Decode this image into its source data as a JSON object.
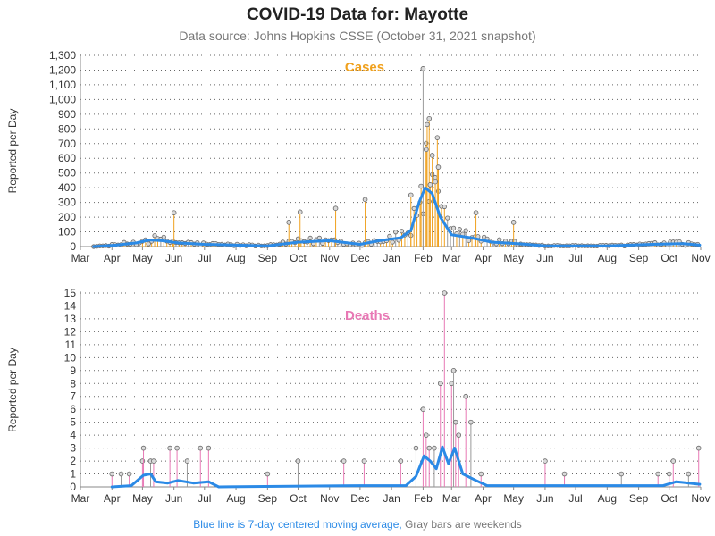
{
  "header": {
    "title": "COVID-19 Data for: Mayotte",
    "subtitle": "Data source: Johns Hopkins CSSE (October 31, 2021 snapshot)"
  },
  "footnote": {
    "blue_part": "Blue line is 7-day centered moving average,",
    "gray_part": " Gray bars are weekends"
  },
  "colors": {
    "cases": "#f0a11e",
    "deaths": "#e879b5",
    "moving_average": "#2b8ae6",
    "weekend": "#9a9a9a",
    "marker_fill": "#d9d9d9",
    "marker_stroke": "#666666",
    "grid": "#666666"
  },
  "chart_data": [
    {
      "type": "bar",
      "panel": "cases",
      "label": "Cases",
      "ylabel": "Reported per Day",
      "ylim": [
        0,
        1300
      ],
      "yticks": [
        0,
        100,
        200,
        300,
        400,
        500,
        600,
        700,
        800,
        900,
        1000,
        1100,
        1200,
        1300
      ],
      "ytick_labels": [
        "0",
        "100",
        "200",
        "300",
        "400",
        "500",
        "600",
        "700",
        "800",
        "900",
        "1,000",
        "1,100",
        "1,200",
        "1,300"
      ],
      "xticks": [
        "Mar",
        "Apr",
        "May",
        "Jun",
        "Jul",
        "Aug",
        "Sep",
        "Oct",
        "Nov",
        "Dec",
        "Jan",
        "Feb",
        "Mar",
        "Apr",
        "May",
        "Jun",
        "Jul",
        "Aug",
        "Sep",
        "Oct",
        "Nov"
      ],
      "x_range": [
        "2020-03-01",
        "2021-11-01"
      ],
      "grid": "horizontal dotted",
      "peak_spikes": [
        {
          "date": "2021-02-01",
          "value": 1210
        },
        {
          "date": "2021-02-07",
          "value": 870
        },
        {
          "date": "2021-02-05",
          "value": 830
        },
        {
          "date": "2021-02-15",
          "value": 740
        },
        {
          "date": "2021-02-04",
          "value": 660
        },
        {
          "date": "2021-02-10",
          "value": 620
        },
        {
          "date": "2021-02-16",
          "value": 540
        },
        {
          "date": "2021-02-13",
          "value": 440
        },
        {
          "date": "2021-02-08",
          "value": 420
        },
        {
          "date": "2021-01-30",
          "value": 410
        },
        {
          "date": "2021-01-20",
          "value": 350
        },
        {
          "date": "2020-12-06",
          "value": 320
        },
        {
          "date": "2020-11-07",
          "value": 260
        },
        {
          "date": "2020-06-01",
          "value": 230
        },
        {
          "date": "2020-10-03",
          "value": 235
        },
        {
          "date": "2020-09-22",
          "value": 165
        },
        {
          "date": "2021-03-25",
          "value": 230
        },
        {
          "date": "2021-05-01",
          "value": 165
        }
      ],
      "moving_average": [
        {
          "date": "2020-03-14",
          "value": 0
        },
        {
          "date": "2020-04-05",
          "value": 10
        },
        {
          "date": "2020-04-25",
          "value": 25
        },
        {
          "date": "2020-05-08",
          "value": 45
        },
        {
          "date": "2020-05-20",
          "value": 40
        },
        {
          "date": "2020-06-05",
          "value": 25
        },
        {
          "date": "2020-07-01",
          "value": 15
        },
        {
          "date": "2020-08-01",
          "value": 10
        },
        {
          "date": "2020-09-01",
          "value": 5
        },
        {
          "date": "2020-10-01",
          "value": 30
        },
        {
          "date": "2020-11-01",
          "value": 40
        },
        {
          "date": "2020-12-01",
          "value": 15
        },
        {
          "date": "2020-12-20",
          "value": 40
        },
        {
          "date": "2021-01-10",
          "value": 60
        },
        {
          "date": "2021-01-20",
          "value": 110
        },
        {
          "date": "2021-01-28",
          "value": 300
        },
        {
          "date": "2021-02-03",
          "value": 400
        },
        {
          "date": "2021-02-10",
          "value": 360
        },
        {
          "date": "2021-02-18",
          "value": 200
        },
        {
          "date": "2021-03-01",
          "value": 80
        },
        {
          "date": "2021-03-20",
          "value": 60
        },
        {
          "date": "2021-04-10",
          "value": 30
        },
        {
          "date": "2021-05-05",
          "value": 20
        },
        {
          "date": "2021-06-01",
          "value": 5
        },
        {
          "date": "2021-08-01",
          "value": 5
        },
        {
          "date": "2021-09-15",
          "value": 15
        },
        {
          "date": "2021-10-15",
          "value": 20
        },
        {
          "date": "2021-10-31",
          "value": 10
        }
      ]
    },
    {
      "type": "bar",
      "panel": "deaths",
      "label": "Deaths",
      "ylabel": "Reported per Day",
      "ylim": [
        0,
        15
      ],
      "yticks": [
        0,
        1,
        2,
        3,
        4,
        5,
        6,
        7,
        8,
        9,
        10,
        11,
        12,
        13,
        14,
        15
      ],
      "ytick_labels": [
        "0",
        "1",
        "2",
        "3",
        "4",
        "5",
        "6",
        "7",
        "8",
        "9",
        "10",
        "11",
        "12",
        "13",
        "14",
        "15"
      ],
      "xticks": [
        "Mar",
        "Apr",
        "May",
        "Jun",
        "Jul",
        "Aug",
        "Sep",
        "Oct",
        "Nov",
        "Dec",
        "Jan",
        "Feb",
        "Mar",
        "Apr",
        "May",
        "Jun",
        "Jul",
        "Aug",
        "Sep",
        "Oct",
        "Nov"
      ],
      "x_range": [
        "2020-03-01",
        "2021-11-01"
      ],
      "grid": "horizontal dotted",
      "spikes": [
        {
          "date": "2020-04-01",
          "value": 1
        },
        {
          "date": "2020-04-10",
          "value": 1
        },
        {
          "date": "2020-04-18",
          "value": 1
        },
        {
          "date": "2020-05-01",
          "value": 2
        },
        {
          "date": "2020-05-02",
          "value": 3
        },
        {
          "date": "2020-05-09",
          "value": 2
        },
        {
          "date": "2020-05-12",
          "value": 2
        },
        {
          "date": "2020-05-28",
          "value": 3
        },
        {
          "date": "2020-06-04",
          "value": 3
        },
        {
          "date": "2020-06-14",
          "value": 2
        },
        {
          "date": "2020-06-27",
          "value": 3
        },
        {
          "date": "2020-07-05",
          "value": 3
        },
        {
          "date": "2020-09-01",
          "value": 1
        },
        {
          "date": "2020-10-01",
          "value": 2
        },
        {
          "date": "2020-11-15",
          "value": 2
        },
        {
          "date": "2020-12-05",
          "value": 2
        },
        {
          "date": "2021-01-10",
          "value": 2
        },
        {
          "date": "2021-01-25",
          "value": 3
        },
        {
          "date": "2021-02-01",
          "value": 6
        },
        {
          "date": "2021-02-04",
          "value": 4
        },
        {
          "date": "2021-02-07",
          "value": 3
        },
        {
          "date": "2021-02-12",
          "value": 3
        },
        {
          "date": "2021-02-18",
          "value": 8
        },
        {
          "date": "2021-02-22",
          "value": 15
        },
        {
          "date": "2021-03-01",
          "value": 8
        },
        {
          "date": "2021-03-03",
          "value": 9
        },
        {
          "date": "2021-03-05",
          "value": 5
        },
        {
          "date": "2021-03-08",
          "value": 4
        },
        {
          "date": "2021-03-15",
          "value": 7
        },
        {
          "date": "2021-03-20",
          "value": 5
        },
        {
          "date": "2021-03-30",
          "value": 1
        },
        {
          "date": "2021-06-01",
          "value": 2
        },
        {
          "date": "2021-06-20",
          "value": 1
        },
        {
          "date": "2021-08-15",
          "value": 1
        },
        {
          "date": "2021-09-20",
          "value": 1
        },
        {
          "date": "2021-10-01",
          "value": 1
        },
        {
          "date": "2021-10-05",
          "value": 2
        },
        {
          "date": "2021-10-20",
          "value": 1
        },
        {
          "date": "2021-10-30",
          "value": 3
        }
      ],
      "moving_average": [
        {
          "date": "2020-04-01",
          "value": 0
        },
        {
          "date": "2020-04-20",
          "value": 0.1
        },
        {
          "date": "2020-05-02",
          "value": 0.9
        },
        {
          "date": "2020-05-09",
          "value": 1.0
        },
        {
          "date": "2020-05-14",
          "value": 0.4
        },
        {
          "date": "2020-05-26",
          "value": 0.3
        },
        {
          "date": "2020-06-05",
          "value": 0.5
        },
        {
          "date": "2020-06-20",
          "value": 0.3
        },
        {
          "date": "2020-07-05",
          "value": 0.4
        },
        {
          "date": "2020-07-15",
          "value": 0
        },
        {
          "date": "2020-12-01",
          "value": 0.1
        },
        {
          "date": "2021-01-15",
          "value": 0.1
        },
        {
          "date": "2021-01-25",
          "value": 0.8
        },
        {
          "date": "2021-02-02",
          "value": 2.4
        },
        {
          "date": "2021-02-08",
          "value": 2.0
        },
        {
          "date": "2021-02-14",
          "value": 1.4
        },
        {
          "date": "2021-02-20",
          "value": 3.1
        },
        {
          "date": "2021-02-26",
          "value": 1.8
        },
        {
          "date": "2021-03-04",
          "value": 3.0
        },
        {
          "date": "2021-03-12",
          "value": 1.0
        },
        {
          "date": "2021-03-25",
          "value": 0.5
        },
        {
          "date": "2021-04-05",
          "value": 0.1
        },
        {
          "date": "2021-06-01",
          "value": 0.1
        },
        {
          "date": "2021-09-25",
          "value": 0.1
        },
        {
          "date": "2021-10-08",
          "value": 0.4
        },
        {
          "date": "2021-10-31",
          "value": 0.2
        }
      ]
    }
  ]
}
